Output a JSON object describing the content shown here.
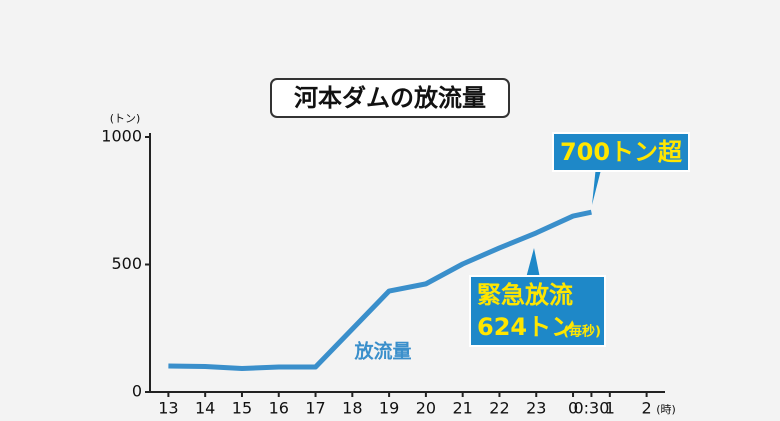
{
  "chart_data": {
    "type": "line",
    "title": "河本ダムの放流量",
    "y_unit": "(トン)",
    "x_unit": "(時)",
    "x": [
      13,
      14,
      15,
      16,
      17,
      19,
      20,
      21,
      22,
      23,
      24,
      24.5
    ],
    "series": [
      {
        "name": "放流量",
        "color": "#3a8fcb",
        "values": [
          102,
          100,
          92,
          98,
          98,
          396,
          424,
          502,
          565,
          624,
          690,
          705
        ]
      }
    ],
    "xlim": [
      12.5,
      26.5
    ],
    "xticks": [
      13,
      14,
      15,
      16,
      17,
      18,
      19,
      20,
      21,
      22,
      23,
      {
        "value": 24,
        "label": "0"
      },
      {
        "value": 24.5,
        "label": "0:30"
      },
      {
        "value": 25,
        "label": "1"
      },
      {
        "value": 26,
        "label": "2"
      }
    ],
    "ylim": [
      0,
      1000
    ],
    "yticks": [
      0,
      500,
      1000
    ],
    "annotations": [
      "700トン超",
      "緊急放流",
      "624トン",
      "(毎秒)"
    ]
  }
}
